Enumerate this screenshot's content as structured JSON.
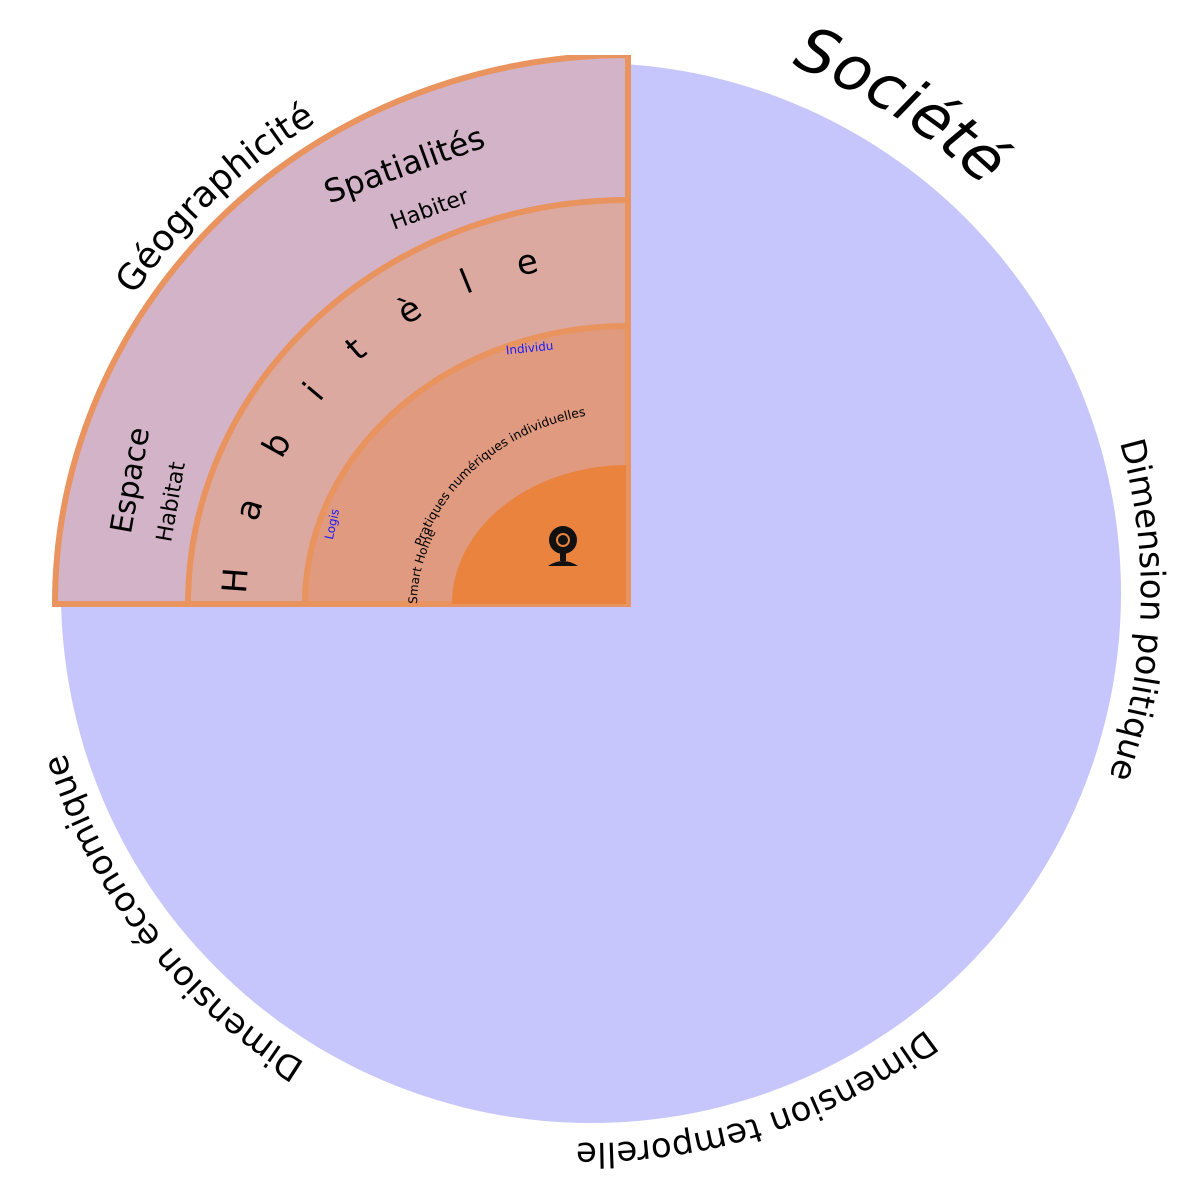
{
  "title": "Société",
  "dimensions": [
    "Dimension politique",
    "Dimension temporelle",
    "Dimension économique"
  ],
  "layers": {
    "outer": {
      "name": "Géographicité",
      "labels": [
        "Spatialités",
        "Habiter",
        "Espace",
        "Habitat"
      ]
    },
    "middle": {
      "name": "Habitèle"
    },
    "inner": {
      "labels": [
        "Individu",
        "Pratiques numériques individuelles",
        "Smart Home",
        "Logis"
      ]
    }
  }
}
